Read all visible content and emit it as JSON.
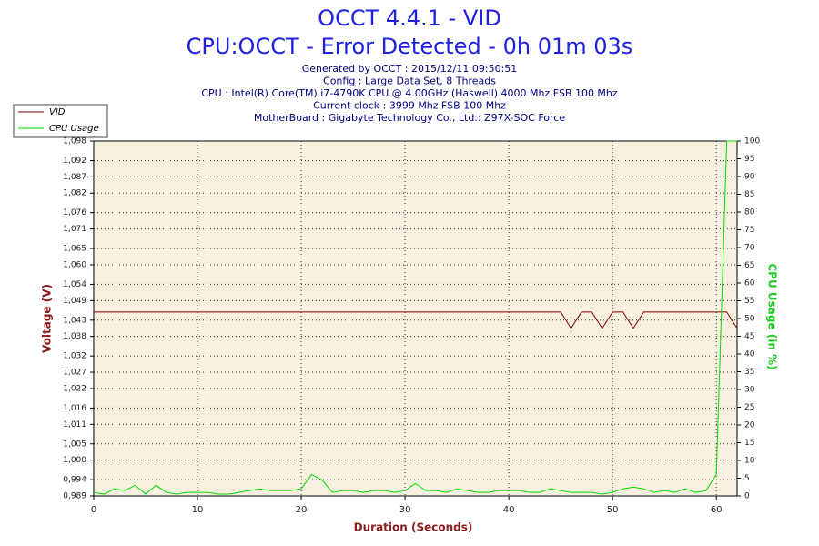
{
  "chart_data": {
    "type": "line",
    "title": "OCCT 4.4.1 - VID",
    "subtitle": "CPU:OCCT - Error Detected - 0h 01m 03s",
    "info": [
      "Generated by OCCT : 2015/12/11 09:50:51",
      "Config : Large Data Set, 8 Threads",
      "CPU : Intel(R) Core(TM) i7-4790K CPU @ 4.00GHz (Haswell) 4000 Mhz FSB 100 Mhz",
      "Current clock : 3999 Mhz FSB 100 Mhz",
      "MotherBoard : Gigabyte Technology Co., Ltd.: Z97X-SOC Force"
    ],
    "xlabel": "Duration (Seconds)",
    "ylabel": "Voltage (V)",
    "y2label": "CPU Usage (in %)",
    "x": [
      0,
      1,
      2,
      3,
      4,
      5,
      6,
      7,
      8,
      9,
      10,
      11,
      12,
      13,
      14,
      15,
      16,
      17,
      18,
      19,
      20,
      21,
      22,
      23,
      24,
      25,
      26,
      27,
      28,
      29,
      30,
      31,
      32,
      33,
      34,
      35,
      36,
      37,
      38,
      39,
      40,
      41,
      42,
      43,
      44,
      45,
      46,
      47,
      48,
      49,
      50,
      51,
      52,
      53,
      54,
      55,
      56,
      57,
      58,
      59,
      60,
      61,
      62
    ],
    "series": [
      {
        "name": "VID",
        "color": "#800000",
        "axis": "y",
        "values": [
          1.0455,
          1.0455,
          1.0455,
          1.0455,
          1.0455,
          1.0455,
          1.0455,
          1.0455,
          1.0455,
          1.0455,
          1.0455,
          1.0455,
          1.0455,
          1.0455,
          1.0455,
          1.0455,
          1.0455,
          1.0455,
          1.0455,
          1.0455,
          1.0455,
          1.0455,
          1.0455,
          1.0455,
          1.0455,
          1.0455,
          1.0455,
          1.0455,
          1.0455,
          1.0455,
          1.0455,
          1.0455,
          1.0455,
          1.0455,
          1.0455,
          1.0455,
          1.0455,
          1.0455,
          1.0455,
          1.0455,
          1.0455,
          1.0455,
          1.0455,
          1.0455,
          1.0455,
          1.0455,
          1.0405,
          1.0455,
          1.0455,
          1.0405,
          1.0455,
          1.0455,
          1.0405,
          1.0455,
          1.0455,
          1.0455,
          1.0455,
          1.0455,
          1.0455,
          1.0455,
          1.0455,
          1.0455,
          1.0405
        ]
      },
      {
        "name": "CPU Usage",
        "color": "#00dd00",
        "axis": "y2",
        "values": [
          1,
          0.5,
          2,
          1.5,
          3,
          0.5,
          3,
          1,
          0.5,
          1,
          1,
          1,
          0.5,
          0.5,
          1,
          1.5,
          2,
          1.5,
          1.5,
          1.5,
          2,
          6,
          4.5,
          1,
          1.5,
          1.5,
          1,
          1.5,
          1.5,
          1,
          1.5,
          3.5,
          1.5,
          1.5,
          1,
          2,
          1.5,
          1,
          1,
          1.5,
          1.5,
          1.5,
          1,
          1,
          2,
          1.5,
          1,
          1,
          1,
          0.5,
          1,
          2,
          2.5,
          2,
          1,
          1.5,
          1,
          2,
          1,
          1.5,
          6,
          100,
          100
        ]
      }
    ],
    "xlim": [
      0,
      62
    ],
    "xticks": [
      0,
      10,
      20,
      30,
      40,
      50,
      60
    ],
    "ylim": [
      0.989,
      1.098
    ],
    "yticks": [
      {
        "value": 0.989,
        "label": "0,989"
      },
      {
        "value": 0.994,
        "label": "0,994"
      },
      {
        "value": 1.0,
        "label": "1,000"
      },
      {
        "value": 1.005,
        "label": "1,005"
      },
      {
        "value": 1.011,
        "label": "1,011"
      },
      {
        "value": 1.016,
        "label": "1,016"
      },
      {
        "value": 1.022,
        "label": "1,022"
      },
      {
        "value": 1.027,
        "label": "1,027"
      },
      {
        "value": 1.032,
        "label": "1,032"
      },
      {
        "value": 1.038,
        "label": "1,038"
      },
      {
        "value": 1.043,
        "label": "1,043"
      },
      {
        "value": 1.049,
        "label": "1,049"
      },
      {
        "value": 1.054,
        "label": "1,054"
      },
      {
        "value": 1.06,
        "label": "1,060"
      },
      {
        "value": 1.065,
        "label": "1,065"
      },
      {
        "value": 1.071,
        "label": "1,071"
      },
      {
        "value": 1.076,
        "label": "1,076"
      },
      {
        "value": 1.082,
        "label": "1,082"
      },
      {
        "value": 1.087,
        "label": "1,087"
      },
      {
        "value": 1.092,
        "label": "1,092"
      },
      {
        "value": 1.098,
        "label": "1,098"
      }
    ],
    "y2lim": [
      0,
      100
    ],
    "y2ticks": [
      0,
      5,
      10,
      15,
      20,
      25,
      30,
      35,
      40,
      45,
      50,
      55,
      60,
      65,
      70,
      75,
      80,
      85,
      90,
      95,
      100
    ],
    "grid": true,
    "legend": "top-left"
  }
}
